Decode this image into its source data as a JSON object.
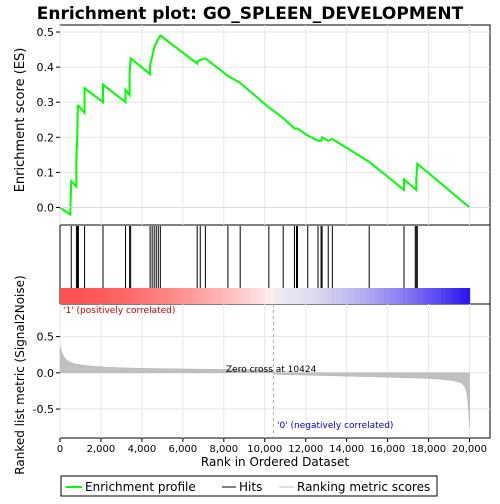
{
  "chart_data": {
    "type": "line",
    "title": "Enrichment plot: GO_SPLEEN_DEVELOPMENT",
    "xlabel": "Rank in Ordered Dataset",
    "ylabel_top": "Enrichment score (ES)",
    "ylabel_bottom": "Ranked list metric (Signal2Noise)",
    "xlim": [
      0,
      21000
    ],
    "ylim_top": [
      -0.05,
      0.52
    ],
    "ylim_bottom": [
      -0.9,
      0.95
    ],
    "x_ticks": [
      0,
      2000,
      4000,
      6000,
      8000,
      10000,
      12000,
      14000,
      16000,
      18000,
      20000
    ],
    "x_tick_labels": [
      "0",
      "2,000",
      "4,000",
      "6,000",
      "8,000",
      "10,000",
      "12,000",
      "14,000",
      "16,000",
      "18,000",
      "20,000"
    ],
    "y_ticks_top": [
      0.0,
      0.1,
      0.2,
      0.3,
      0.4,
      0.5
    ],
    "y_tick_labels_top": [
      "0.0",
      "0.1",
      "0.2",
      "0.3",
      "0.4",
      "0.5"
    ],
    "y_ticks_bottom": [
      0.5,
      0.0,
      -0.5
    ],
    "y_tick_labels_bottom": [
      "0.5",
      "0.0",
      "-0.5"
    ],
    "grid": true,
    "legend_position": "bottom",
    "legend": [
      {
        "label": "Enrichment profile",
        "color": "#00ff00"
      },
      {
        "label": "Hits",
        "color": "#000000"
      },
      {
        "label": "Ranking metric scores",
        "color": "#c0c0c0"
      }
    ],
    "annotations": {
      "positive_label": "'1' (positively correlated)",
      "negative_label": "'0' (negatively correlated)",
      "zero_cross_label": "Zero cross at 10424",
      "zero_cross": 10424
    },
    "colors": {
      "enrichment_line": "#00ff00",
      "positive_text": "#cc0000",
      "negative_text": "#0000cc",
      "metric_fill": "#c0c0c0"
    },
    "n_genes": 20000,
    "hits": [
      550,
      800,
      850,
      870,
      900,
      1200,
      2100,
      3200,
      3400,
      3450,
      4400,
      4500,
      4600,
      4700,
      4800,
      4900,
      6700,
      6850,
      7100,
      8200,
      8800,
      10200,
      10900,
      11450,
      11550,
      11600,
      12100,
      12600,
      12750,
      12800,
      13100,
      13300,
      15100,
      16800,
      17350,
      17400,
      17450
    ],
    "enrichment_profile": {
      "x": [
        0,
        500,
        550,
        800,
        800,
        850,
        850,
        870,
        900,
        1200,
        1200,
        2100,
        2100,
        3200,
        3200,
        3400,
        3400,
        3450,
        4400,
        4400,
        4500,
        4600,
        4700,
        4800,
        4900,
        6700,
        6700,
        6850,
        7100,
        8200,
        8800,
        10200,
        10900,
        11450,
        11600,
        12100,
        12600,
        12750,
        12800,
        13100,
        13300,
        15100,
        16800,
        16800,
        17400,
        17400,
        17450,
        20000
      ],
      "y": [
        0.0,
        -0.02,
        0.075,
        0.06,
        0.14,
        0.21,
        0.22,
        0.29,
        0.29,
        0.27,
        0.34,
        0.3,
        0.35,
        0.3,
        0.335,
        0.32,
        0.385,
        0.425,
        0.38,
        0.405,
        0.43,
        0.455,
        0.47,
        0.48,
        0.49,
        0.41,
        0.415,
        0.42,
        0.425,
        0.375,
        0.355,
        0.285,
        0.255,
        0.225,
        0.225,
        0.205,
        0.19,
        0.19,
        0.2,
        0.19,
        0.195,
        0.13,
        0.05,
        0.08,
        0.05,
        0.08,
        0.125,
        0.0
      ]
    }
  }
}
